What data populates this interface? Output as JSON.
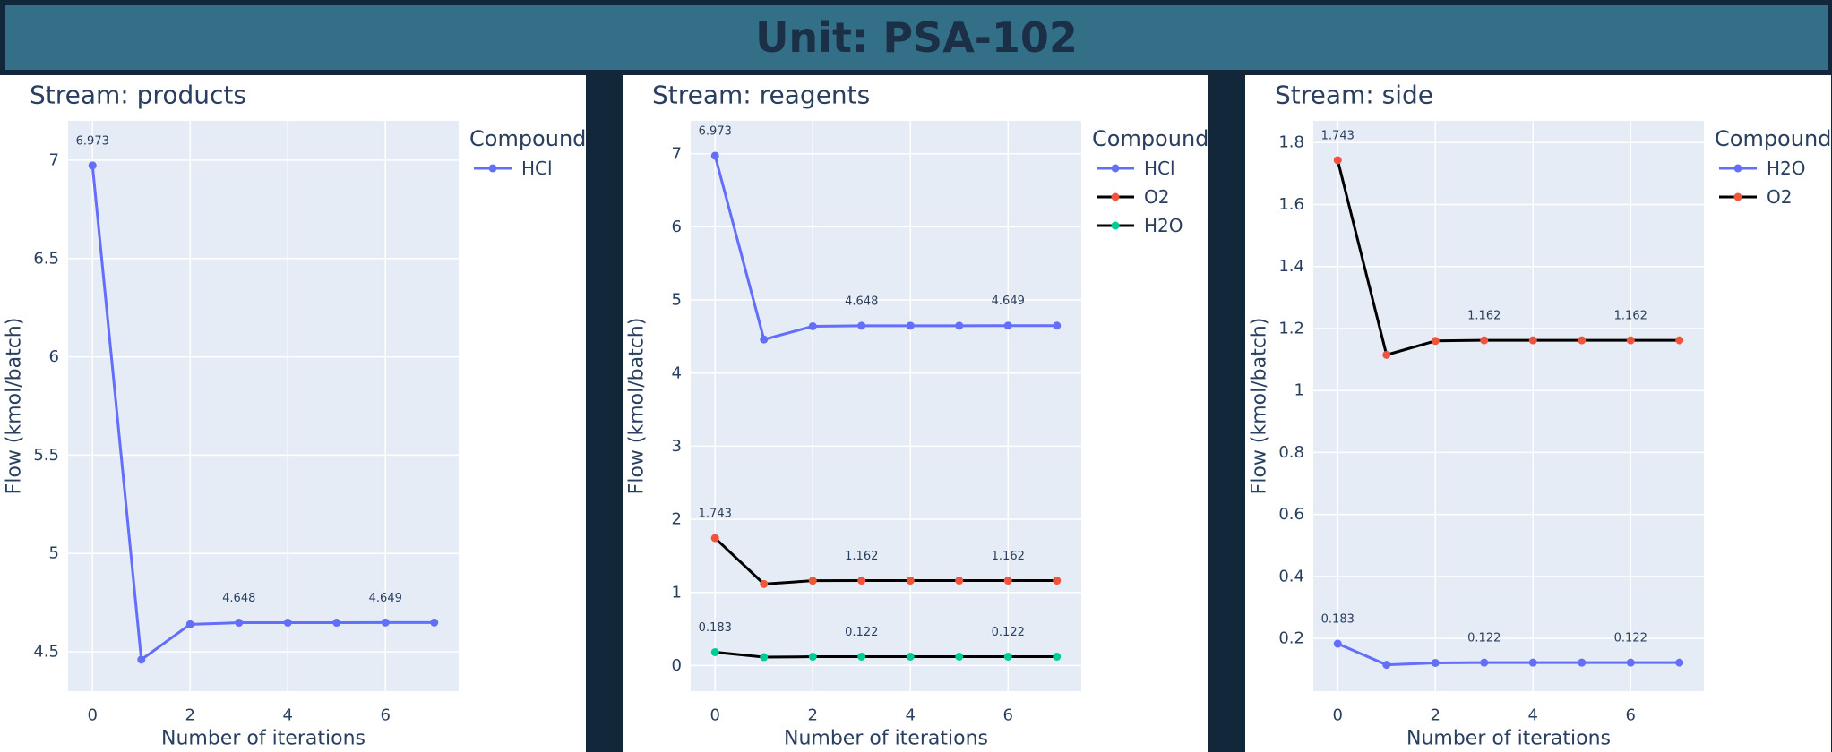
{
  "header": {
    "title": "Unit: PSA-102"
  },
  "colors": {
    "page_background": "#12283a",
    "header_background": "#346f88",
    "header_text": "#1b2f47",
    "plot_background": "#e5ecf6",
    "grid": "#ffffff",
    "text": "#2a3f5f",
    "HCl": "#636efa",
    "O2": "#ef553b",
    "H2O": "#00cc96",
    "black_line": "#000000"
  },
  "chart_data": [
    {
      "type": "line",
      "title": "Stream: products",
      "xlabel": "Number of iterations",
      "ylabel": "Flow (kmol/batch)",
      "xlim": [
        -0.5,
        7.5
      ],
      "ylim": [
        4.3,
        7.2
      ],
      "xticks": [
        0,
        2,
        4,
        6
      ],
      "yticks": [
        4.5,
        5,
        5.5,
        6,
        6.5,
        7
      ],
      "yticklabels": [
        "4.5",
        "5",
        "5.5",
        "6",
        "6.5",
        "7"
      ],
      "grid": true,
      "legend_title": "Compound",
      "legend_position": "right",
      "x": [
        0,
        1,
        2,
        3,
        4,
        5,
        6,
        7
      ],
      "series": [
        {
          "name": "HCl",
          "line_color": "#636efa",
          "marker_color": "#636efa",
          "values": [
            6.973,
            4.46,
            4.64,
            4.648,
            4.648,
            4.648,
            4.649,
            4.649
          ],
          "labels": [
            {
              "x": 0,
              "y": 6.973,
              "text": "6.973"
            },
            {
              "x": 3,
              "y": 4.648,
              "text": "4.648"
            },
            {
              "x": 6,
              "y": 4.649,
              "text": "4.649"
            }
          ]
        }
      ]
    },
    {
      "type": "line",
      "title": "Stream: reagents",
      "xlabel": "Number of iterations",
      "ylabel": "Flow (kmol/batch)",
      "xlim": [
        -0.5,
        7.5
      ],
      "ylim": [
        -0.35,
        7.45
      ],
      "xticks": [
        0,
        2,
        4,
        6
      ],
      "yticks": [
        0,
        1,
        2,
        3,
        4,
        5,
        6,
        7
      ],
      "yticklabels": [
        "0",
        "1",
        "2",
        "3",
        "4",
        "5",
        "6",
        "7"
      ],
      "grid": true,
      "legend_title": "Compound",
      "legend_position": "right",
      "x": [
        0,
        1,
        2,
        3,
        4,
        5,
        6,
        7
      ],
      "series": [
        {
          "name": "HCl",
          "line_color": "#636efa",
          "marker_color": "#636efa",
          "values": [
            6.973,
            4.46,
            4.64,
            4.648,
            4.648,
            4.648,
            4.649,
            4.649
          ],
          "labels": [
            {
              "x": 0,
              "y": 6.973,
              "text": "6.973"
            },
            {
              "x": 3,
              "y": 4.648,
              "text": "4.648"
            },
            {
              "x": 6,
              "y": 4.649,
              "text": "4.649"
            }
          ]
        },
        {
          "name": "O2",
          "line_color": "#000000",
          "marker_color": "#ef553b",
          "values": [
            1.743,
            1.115,
            1.16,
            1.162,
            1.162,
            1.162,
            1.162,
            1.162
          ],
          "labels": [
            {
              "x": 0,
              "y": 1.743,
              "text": "1.743"
            },
            {
              "x": 3,
              "y": 1.162,
              "text": "1.162"
            },
            {
              "x": 6,
              "y": 1.162,
              "text": "1.162"
            }
          ]
        },
        {
          "name": "H2O",
          "line_color": "#000000",
          "marker_color": "#00cc96",
          "values": [
            0.183,
            0.115,
            0.121,
            0.122,
            0.122,
            0.122,
            0.122,
            0.122
          ],
          "labels": [
            {
              "x": 0,
              "y": 0.183,
              "text": "0.183"
            },
            {
              "x": 3,
              "y": 0.122,
              "text": "0.122"
            },
            {
              "x": 6,
              "y": 0.122,
              "text": "0.122"
            }
          ]
        }
      ]
    },
    {
      "type": "line",
      "title": "Stream: side",
      "xlabel": "Number of iterations",
      "ylabel": "Flow (kmol/batch)",
      "xlim": [
        -0.5,
        7.5
      ],
      "ylim": [
        0.03,
        1.87
      ],
      "xticks": [
        0,
        2,
        4,
        6
      ],
      "yticks": [
        0.2,
        0.4,
        0.6,
        0.8,
        1,
        1.2,
        1.4,
        1.6,
        1.8
      ],
      "yticklabels": [
        "0.2",
        "0.4",
        "0.6",
        "0.8",
        "1",
        "1.2",
        "1.4",
        "1.6",
        "1.8"
      ],
      "grid": true,
      "legend_title": "Compound",
      "legend_position": "right",
      "x": [
        0,
        1,
        2,
        3,
        4,
        5,
        6,
        7
      ],
      "series": [
        {
          "name": "H2O",
          "line_color": "#636efa",
          "marker_color": "#636efa",
          "values": [
            0.183,
            0.115,
            0.121,
            0.122,
            0.122,
            0.122,
            0.122,
            0.122
          ],
          "labels": [
            {
              "x": 0,
              "y": 0.183,
              "text": "0.183"
            },
            {
              "x": 3,
              "y": 0.122,
              "text": "0.122"
            },
            {
              "x": 6,
              "y": 0.122,
              "text": "0.122"
            }
          ]
        },
        {
          "name": "O2",
          "line_color": "#000000",
          "marker_color": "#ef553b",
          "values": [
            1.743,
            1.115,
            1.16,
            1.162,
            1.162,
            1.162,
            1.162,
            1.162
          ],
          "labels": [
            {
              "x": 0,
              "y": 1.743,
              "text": "1.743"
            },
            {
              "x": 3,
              "y": 1.162,
              "text": "1.162"
            },
            {
              "x": 6,
              "y": 1.162,
              "text": "1.162"
            }
          ]
        }
      ]
    }
  ]
}
